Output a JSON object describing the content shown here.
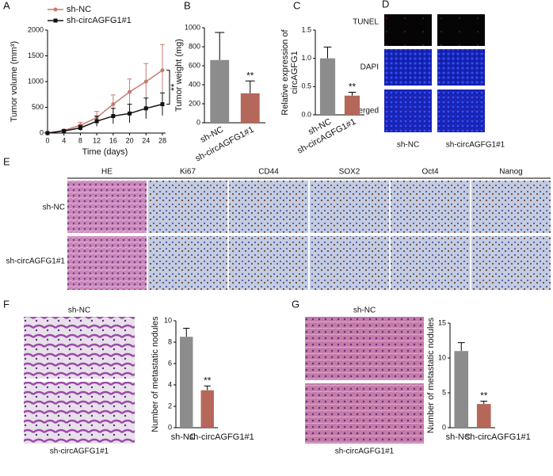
{
  "chart_data": [
    {
      "type": "line",
      "xlabel": "Time (days)",
      "ylabel": "Tumor volume (mm³)",
      "annotation": "**",
      "x": [
        0,
        4,
        8,
        12,
        16,
        20,
        24,
        28
      ],
      "xlim": [
        0,
        28
      ],
      "xticks": [
        0,
        4,
        8,
        12,
        16,
        20,
        24,
        28
      ],
      "ylim": [
        0,
        2000
      ],
      "yticks": [
        0,
        500,
        1000,
        1500,
        2000
      ],
      "legend": "upper left",
      "series": [
        {
          "name": "sh-NC",
          "color": "#c47c72",
          "values": [
            0,
            50,
            150,
            300,
            560,
            800,
            1000,
            1220
          ],
          "errors": [
            0,
            20,
            60,
            120,
            180,
            250,
            350,
            500
          ]
        },
        {
          "name": "sh-circAGFG1#1",
          "color": "#111111",
          "values": [
            0,
            40,
            100,
            230,
            330,
            380,
            480,
            560
          ],
          "errors": [
            0,
            20,
            50,
            100,
            150,
            180,
            200,
            220
          ]
        }
      ]
    },
    {
      "type": "bar",
      "ylabel": [
        "Tumor weight (mg)"
      ],
      "annotation": "**",
      "categories": [
        "sh-NC",
        "sh-circAGFG1#1"
      ],
      "values": [
        660,
        310
      ],
      "errors": [
        290,
        130
      ],
      "colors": [
        "#8c8c8c",
        "#b5675a"
      ],
      "ylim": [
        0,
        1000
      ],
      "yticks": [
        0,
        200,
        400,
        600,
        800,
        1000
      ],
      "rotated_labels": true
    },
    {
      "type": "bar",
      "ylabel": [
        "Relative expression of",
        "circAGFG1"
      ],
      "annotation": "**",
      "categories": [
        "sh-NC",
        "sh-circAGFG1#1"
      ],
      "values": [
        1.0,
        0.34
      ],
      "errors": [
        0.2,
        0.06
      ],
      "colors": [
        "#8c8c8c",
        "#b5675a"
      ],
      "ylim": [
        0,
        1.5
      ],
      "yticks": [
        {
          "value": 0,
          "label": "0.0"
        },
        {
          "value": 0.5,
          "label": "0.5"
        },
        {
          "value": 1,
          "label": "1.0"
        },
        {
          "value": 1.5,
          "label": "1.5"
        }
      ],
      "rotated_labels": true
    },
    {
      "type": "bar",
      "ylabel": [
        "Number of metastatic nodules"
      ],
      "annotation": "**",
      "categories": [
        "sh-NC",
        "sh-circAGFG1#1"
      ],
      "values": [
        8.5,
        3.5
      ],
      "errors": [
        0.8,
        0.4
      ],
      "colors": [
        "#8c8c8c",
        "#b5675a"
      ],
      "ylim": [
        0,
        10
      ],
      "yticks": [
        0,
        2,
        4,
        6,
        8,
        10
      ],
      "rotated_labels": false
    },
    {
      "type": "bar",
      "ylabel": [
        "Number of metastatic nodules"
      ],
      "annotation": "**",
      "categories": [
        "sh-NC",
        "sh-circAGFG1#1"
      ],
      "values": [
        11,
        3.4
      ],
      "errors": [
        1.2,
        0.4
      ],
      "colors": [
        "#8c8c8c",
        "#b5675a"
      ],
      "ylim": [
        0,
        15
      ],
      "yticks": [
        0,
        5,
        10,
        15
      ],
      "rotated_labels": false
    }
  ],
  "panel_labels": [
    "A",
    "B",
    "C",
    "D",
    "E",
    "F",
    "G"
  ],
  "panel_d": {
    "rows": [
      "TUNEL",
      "DAPI",
      "Merged"
    ],
    "columns": [
      "sh-NC",
      "sh-circAGFG1#1"
    ]
  },
  "panel_e": {
    "columns": [
      "HE",
      "Ki67",
      "CD44",
      "SOX2",
      "Oct4",
      "Nanog"
    ],
    "rows": [
      "sh-NC",
      "sh-circAGFG1#1"
    ]
  },
  "panel_f": {
    "images": [
      "sh-NC",
      "sh-circAGFG1#1"
    ]
  },
  "panel_g": {
    "images": [
      "sh-NC",
      "sh-circAGFG1#1"
    ]
  }
}
